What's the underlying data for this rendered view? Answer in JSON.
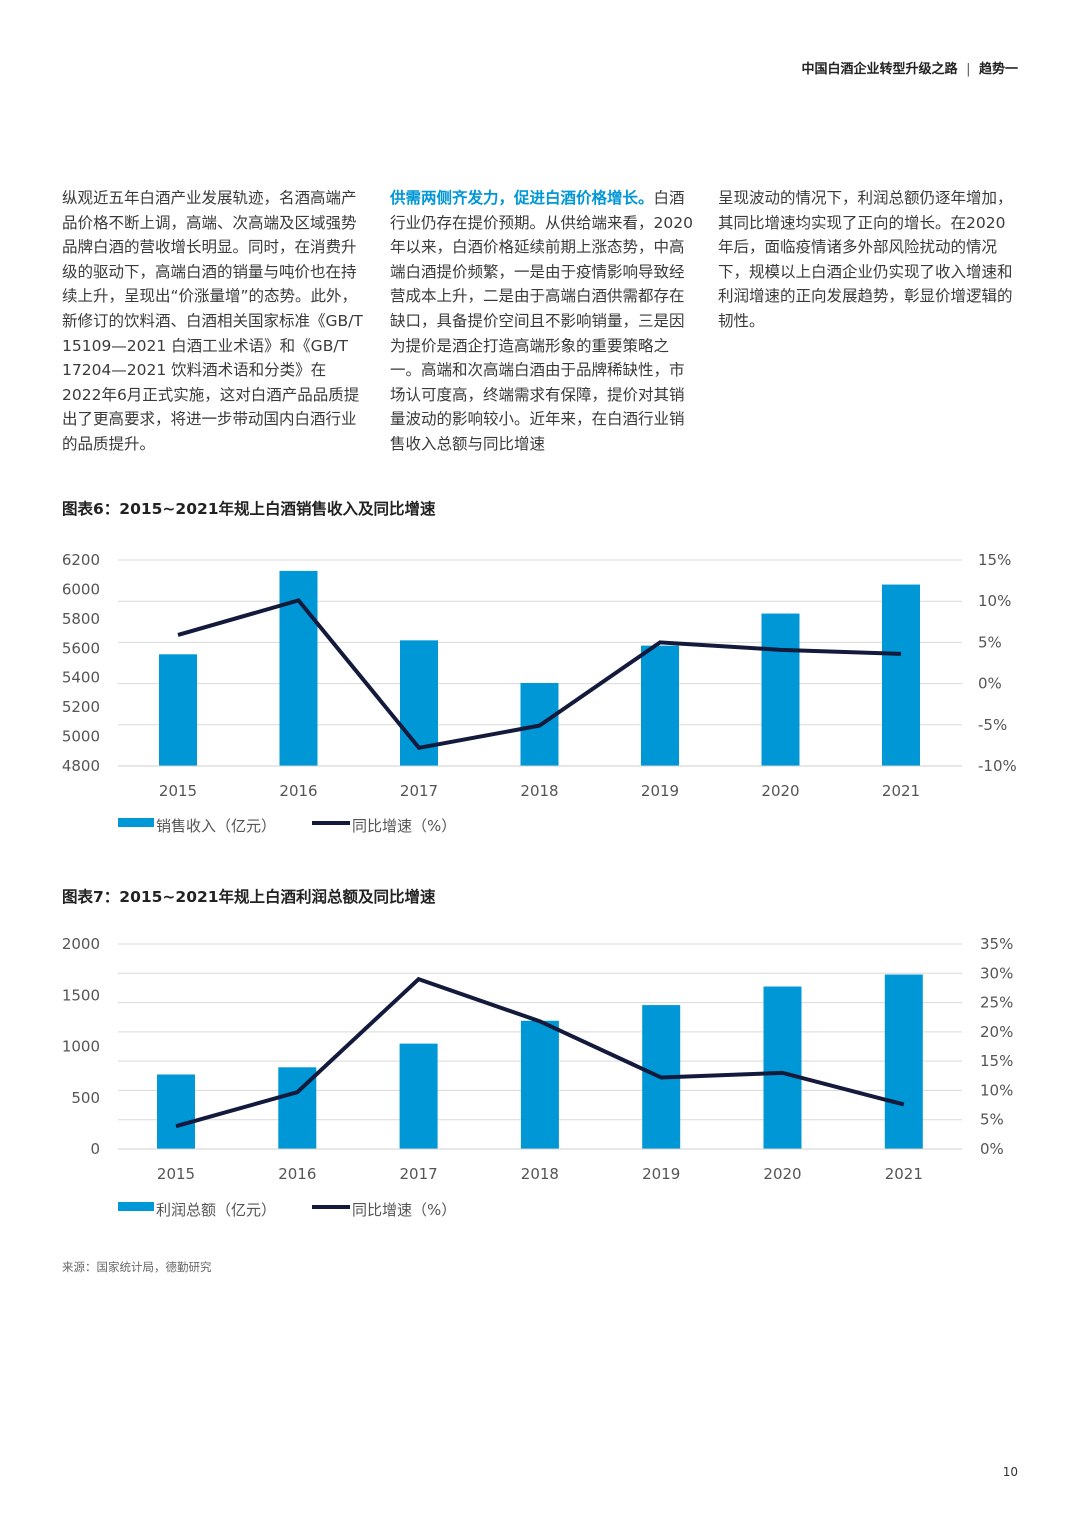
{
  "header": {
    "title": "中国白酒企业转型升级之路",
    "section": "趋势一",
    "separator": "|"
  },
  "body": {
    "col1": "纵观近五年白酒产业发展轨迹，名酒高端产品价格不断上调，高端、次高端及区域强势品牌白酒的营收增长明显。同时，在消费升级的驱动下，高端白酒的销量与吨价也在持续上升，呈现出“价涨量增”的态势。此外，新修订的饮料酒、白酒相关国家标准《GB/T 15109—2021 白酒工业术语》和《GB/T 17204—2021 饮料酒术语和分类》在2022年6月正式实施，这对白酒产品品质提出了更高要求，将进一步带动国内白酒行业的品质提升。",
    "col2_lead": "供需两侧齐发力，促进白酒价格增长。",
    "col2": "白酒行业仍存在提价预期。从供给端来看，2020年以来，白酒价格延续前期上涨态势，中高端白酒提价频繁，一是由于疫情影响导致经营成本上升，二是由于高端白酒供需都存在缺口，具备提价空间且不影响销量，三是因为提价是酒企打造高端形象的重要策略之一。高端和次高端白酒由于品牌稀缺性，市场认可度高，终端需求有保障，提价对其销量波动的影响较小。近年来，在白酒行业销售收入总额与同比增速",
    "col3": "呈现波动的情况下，利润总额仍逐年增加，其同比增速均实现了正向的增长。在2020年后，面临疫情诸多外部风险扰动的情况下，规模以上白酒企业仍实现了收入增速和利润增速的正向发展趋势，彰显价增逻辑的韧性。"
  },
  "chart_data": [
    {
      "type": "bar",
      "title": "图表6：2015~2021年规上白酒销售收入及同比增速",
      "categories": [
        "2015",
        "2016",
        "2017",
        "2018",
        "2019",
        "2020",
        "2021"
      ],
      "series": [
        {
          "name": "销售收入（亿元）",
          "type": "bar",
          "axis": "left",
          "values": [
            5559,
            6126,
            5654,
            5364,
            5618,
            5836,
            6033
          ]
        },
        {
          "name": "同比增速（%）",
          "type": "line",
          "axis": "right",
          "values": [
            5.9,
            10.1,
            -7.8,
            -5.1,
            5.0,
            4.1,
            3.6
          ]
        }
      ],
      "ylim_left": [
        4800,
        6200
      ],
      "left_ticks": [
        "4800",
        "5000",
        "5200",
        "5400",
        "5600",
        "5800",
        "6000",
        "6200"
      ],
      "ylim_right": [
        -10,
        15
      ],
      "right_ticks": [
        "-10%",
        "-5%",
        "0%",
        "5%",
        "10%",
        "15%"
      ],
      "legend_position": "bottom-left",
      "colors": {
        "bar": "#0097d6",
        "line": "#141a3c"
      }
    },
    {
      "type": "bar",
      "title": "图表7：2015~2021年规上白酒利润总额及同比增速",
      "categories": [
        "2015",
        "2016",
        "2017",
        "2018",
        "2019",
        "2020",
        "2021"
      ],
      "series": [
        {
          "name": "利润总额（亿元）",
          "type": "bar",
          "axis": "left",
          "values": [
            727,
            797,
            1028,
            1251,
            1404,
            1585,
            1702
          ]
        },
        {
          "name": "同比增速（%）",
          "type": "line",
          "axis": "right",
          "values": [
            3.9,
            9.7,
            29.0,
            21.8,
            12.2,
            13.0,
            7.6
          ]
        }
      ],
      "ylim_left": [
        0,
        2000
      ],
      "left_ticks": [
        "0",
        "500",
        "1000",
        "1500",
        "2000"
      ],
      "ylim_right": [
        0,
        35
      ],
      "right_ticks": [
        "0%",
        "5%",
        "10%",
        "15%",
        "20%",
        "25%",
        "30%",
        "35%"
      ],
      "legend_position": "bottom-left",
      "colors": {
        "bar": "#0097d6",
        "line": "#141a3c"
      }
    }
  ],
  "source": "来源：国家统计局，德勤研究",
  "page_number": "10"
}
